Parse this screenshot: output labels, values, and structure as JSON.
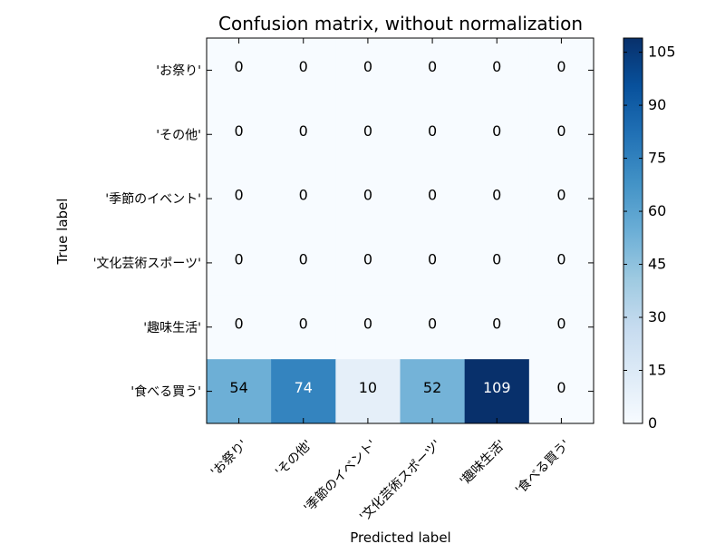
{
  "chart_data": {
    "type": "heatmap",
    "title": "Confusion matrix, without normalization",
    "xlabel": "Predicted label",
    "ylabel": "True label",
    "row_labels": [
      "'お祭り'",
      "'その他'",
      "'季節のイベント'",
      "'文化芸術スポーツ'",
      "'趣味生活'",
      "'食べる買う'"
    ],
    "col_labels": [
      "'お祭り'",
      "'その他'",
      "'季節のイベント'",
      "'文化芸術スポーツ'",
      "'趣味生活'",
      "'食べる買う'"
    ],
    "matrix": [
      [
        0,
        0,
        0,
        0,
        0,
        0
      ],
      [
        0,
        0,
        0,
        0,
        0,
        0
      ],
      [
        0,
        0,
        0,
        0,
        0,
        0
      ],
      [
        0,
        0,
        0,
        0,
        0,
        0
      ],
      [
        0,
        0,
        0,
        0,
        0,
        0
      ],
      [
        54,
        74,
        10,
        52,
        109,
        0
      ]
    ],
    "colormap": "Blues",
    "colorbar": {
      "range": [
        0,
        109
      ],
      "ticks": [
        0,
        15,
        30,
        45,
        60,
        75,
        90,
        105
      ]
    },
    "grid": false
  }
}
